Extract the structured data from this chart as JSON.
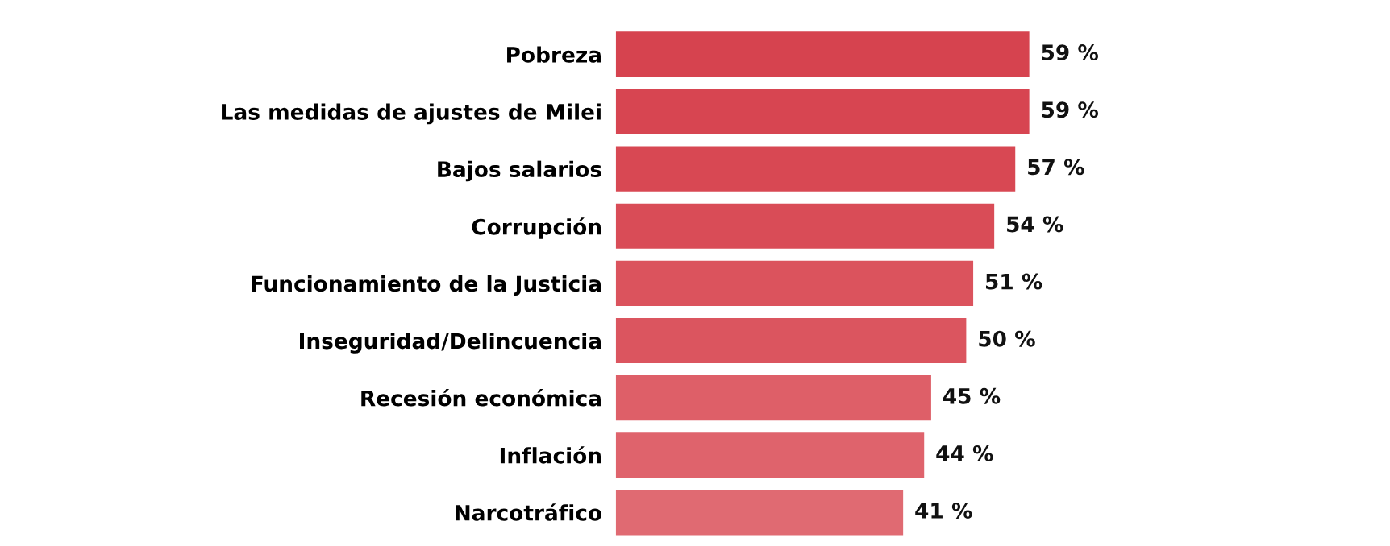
{
  "chart_data": {
    "type": "bar",
    "orientation": "horizontal",
    "categories": [
      "Pobreza",
      "Las medidas de ajustes de Milei",
      "Bajos salarios",
      "Corrupción",
      "Funcionamiento de la Justicia",
      "Inseguridad/Delincuencia",
      "Recesión económica",
      "Inflación",
      "Narcotráfico"
    ],
    "values": [
      59,
      59,
      57,
      54,
      51,
      50,
      45,
      44,
      41
    ],
    "value_labels": [
      "59 %",
      "59 %",
      "57 %",
      "54 %",
      "51 %",
      "50 %",
      "45 %",
      "44 %",
      "41 %"
    ],
    "colors": [
      "#d6434f",
      "#d74551",
      "#d84853",
      "#d94c57",
      "#db535d",
      "#db555f",
      "#de5f68",
      "#df636c",
      "#e06a72"
    ],
    "grid": false,
    "legend": false
  }
}
